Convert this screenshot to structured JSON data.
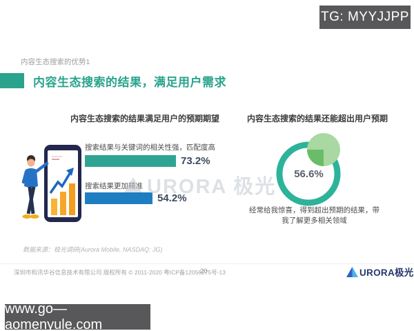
{
  "colors": {
    "accent_teal": "#29a38c",
    "bar_teal": "#2fa493",
    "bar_blue": "#1f7ec2",
    "ring_teal": "#2db39a",
    "pie_light_green": "#a9d8a2",
    "pie_dark_green": "#69bd68",
    "badge_background": "#58585a",
    "logo_navy": "#25386b"
  },
  "overlays": {
    "tg_badge": "TG: MYYJJPP",
    "website_badge": "www.go—aomenyule.com"
  },
  "slide": {
    "eyebrow": "内容生态搜索的优势1",
    "title": "内容生态搜索的结果，满足用户需求",
    "watermark": "URORA 极光",
    "source": "数据来源：极光调研(Aurora Mobile, NASDAQ: JG)",
    "footer": {
      "copyright": "深圳市和讯华谷信息技术有限公司 版权所有 © 2011-2020 粤ICP备12056275号-13",
      "page_number": "20",
      "logo_text": "URORA极光"
    }
  },
  "chart_data": [
    {
      "type": "bar",
      "orientation": "horizontal",
      "title": "内容生态搜索的结果满足用户的预期期望",
      "categories": [
        "搜索结果与关键词的相关性强，匹配度高",
        "搜索结果更加精准"
      ],
      "values": [
        73.2,
        54.2
      ],
      "value_labels": [
        "73.2%",
        "54.2%"
      ],
      "bar_colors": [
        "#2fa493",
        "#1f7ec2"
      ],
      "xlim": [
        0,
        100
      ],
      "grid": false,
      "legend": false
    },
    {
      "type": "pie",
      "title": "内容生态搜索的结果还能超出用户预期",
      "values": [
        56.6,
        43.4
      ],
      "value_label": "56.6%",
      "ring_color": "#2db39a",
      "pie_colors": [
        "#a9d8a2",
        "#69bd68"
      ],
      "caption": "经常给我惊喜，得到超出预期的结果，带我了解更多相关领域",
      "caption_lines": [
        "经常给我惊喜，得到超出预期的结果，带",
        "我了解更多相关领域"
      ]
    }
  ]
}
